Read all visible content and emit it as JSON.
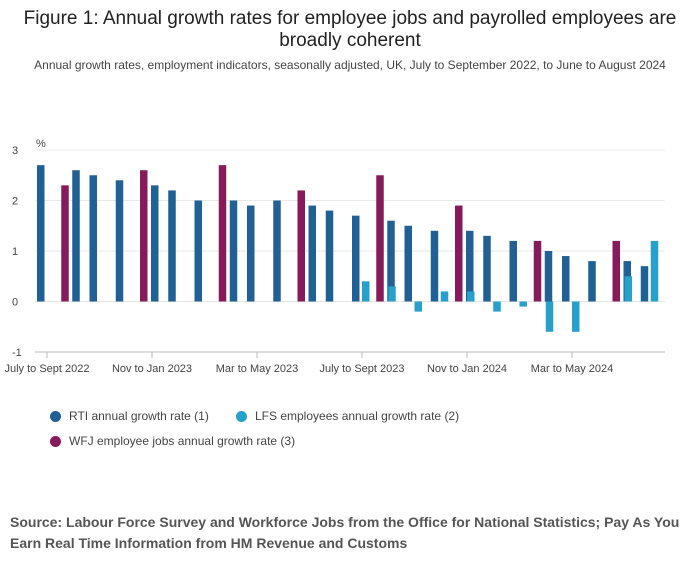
{
  "title": "Figure 1: Annual growth rates for employee jobs and payrolled employees are broadly coherent",
  "subtitle": "Annual growth rates, employment indicators, seasonally adjusted, UK, July to September 2022, to June to August 2024",
  "source": "Source: Labour Force Survey and Workforce Jobs from the Office for National Statistics; Pay As You Earn Real Time Information from HM Revenue and Customs",
  "chart_data": {
    "type": "bar",
    "ylabel": "%",
    "ylim": [
      -1,
      3
    ],
    "yticks": [
      3,
      2,
      1,
      0,
      -1
    ],
    "grid": true,
    "legend_position": "bottom",
    "x_tick_labels": [
      "July to Sept 2022",
      "Nov to Jan 2023",
      "Mar to May 2023",
      "July to Sept 2023",
      "Nov to Jan 2024",
      "Mar to May 2024"
    ],
    "x_tick_indices": [
      0,
      4,
      8,
      12,
      16,
      20
    ],
    "series": [
      {
        "name": "RTI annual growth rate (1)",
        "color": "#206095",
        "values": [
          2.7,
          2.6,
          2.5,
          2.4,
          2.3,
          2.2,
          2.0,
          2.0,
          1.9,
          2.0,
          1.9,
          1.8,
          1.7,
          1.6,
          1.5,
          1.4,
          1.4,
          1.3,
          1.2,
          1.0,
          0.9,
          0.8,
          0.8,
          0.7
        ]
      },
      {
        "name": "LFS employees annual growth rate (2)",
        "color": "#27a0cc",
        "values": [
          null,
          null,
          null,
          null,
          null,
          null,
          null,
          null,
          null,
          null,
          null,
          null,
          0.4,
          0.3,
          -0.2,
          0.2,
          0.2,
          -0.2,
          -0.1,
          -0.6,
          -0.6,
          null,
          0.5,
          1.2
        ]
      },
      {
        "name": "WFJ employee jobs annual growth rate (3)",
        "color": "#871a5b",
        "values": [
          null,
          2.3,
          null,
          null,
          2.6,
          null,
          null,
          2.7,
          null,
          null,
          2.2,
          null,
          null,
          2.5,
          null,
          null,
          1.9,
          null,
          null,
          1.2,
          null,
          null,
          1.2,
          null
        ]
      }
    ]
  }
}
